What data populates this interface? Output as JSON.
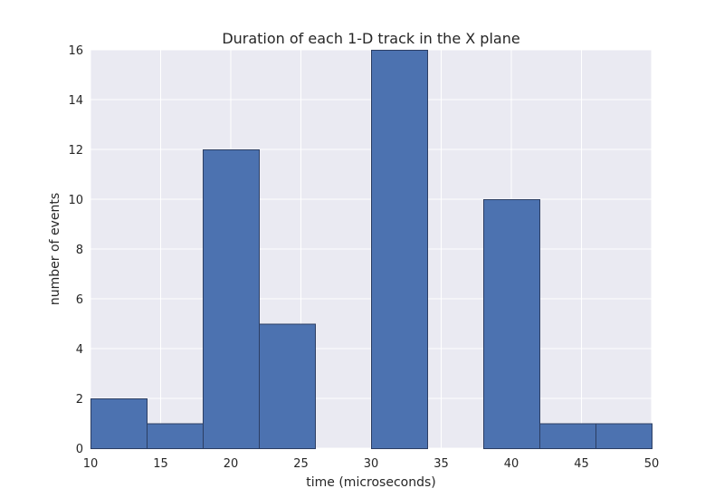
{
  "chart_data": {
    "type": "bar",
    "title": "Duration of each 1-D track in the X plane",
    "xlabel": "time (microseconds)",
    "ylabel": "number of events",
    "xlim": [
      10,
      50
    ],
    "ylim": [
      0,
      16
    ],
    "x_ticks": [
      10,
      15,
      20,
      25,
      30,
      35,
      40,
      45,
      50
    ],
    "y_ticks": [
      0,
      2,
      4,
      6,
      8,
      10,
      12,
      14,
      16
    ],
    "grid": true,
    "bins": [
      {
        "start": 10,
        "end": 14,
        "value": 2
      },
      {
        "start": 14,
        "end": 18,
        "value": 1
      },
      {
        "start": 18,
        "end": 22,
        "value": 12
      },
      {
        "start": 22,
        "end": 26,
        "value": 5
      },
      {
        "start": 26,
        "end": 30,
        "value": 0
      },
      {
        "start": 30,
        "end": 34,
        "value": 16
      },
      {
        "start": 34,
        "end": 38,
        "value": 0
      },
      {
        "start": 38,
        "end": 42,
        "value": 10
      },
      {
        "start": 42,
        "end": 46,
        "value": 1
      },
      {
        "start": 46,
        "end": 50,
        "value": 1
      }
    ],
    "colors": {
      "bar_fill": "#4c72b0",
      "bar_edge": "#2c3e63",
      "plot_background": "#eaeaf2",
      "grid": "#ffffff"
    }
  }
}
